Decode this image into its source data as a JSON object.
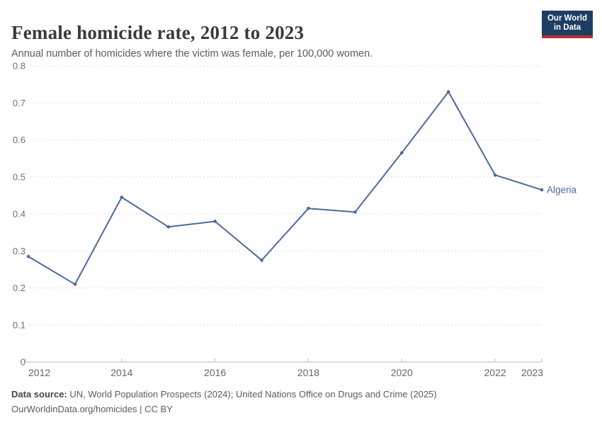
{
  "header": {
    "title": "Female homicide rate, 2012 to 2023",
    "subtitle": "Annual number of homicides where the victim was female, per 100,000 women.",
    "logo": {
      "line1": "Our World",
      "line2": "in Data"
    }
  },
  "colors": {
    "line": "#4c6a9c",
    "gridline": "#dcdcdc",
    "axis": "#bbbbbb",
    "tick_label": "#6e6e6e",
    "logo_bg": "#1d3d63",
    "logo_red": "#be2d2d"
  },
  "chart_data": {
    "type": "line",
    "title": "Female homicide rate, 2012 to 2023",
    "subtitle": "Annual number of homicides where the victim was female, per 100,000 women.",
    "x": [
      2012,
      2013,
      2014,
      2015,
      2016,
      2017,
      2018,
      2019,
      2020,
      2021,
      2022,
      2023
    ],
    "series": [
      {
        "name": "Algeria",
        "color": "#4c6a9c",
        "values": [
          0.285,
          0.21,
          0.445,
          0.365,
          0.38,
          0.275,
          0.415,
          0.405,
          0.565,
          0.73,
          0.505,
          0.465
        ]
      }
    ],
    "ylim": [
      0,
      0.8
    ],
    "yticks": [
      0,
      0.1,
      0.2,
      0.3,
      0.4,
      0.5,
      0.6,
      0.7,
      0.8
    ],
    "ytick_labels": [
      "0",
      "0.1",
      "0.2",
      "0.3",
      "0.4",
      "0.5",
      "0.6",
      "0.7",
      "0.8"
    ],
    "xticks": [
      2012,
      2014,
      2016,
      2018,
      2020,
      2022,
      2023
    ],
    "xtick_labels": [
      "2012",
      "2014",
      "2016",
      "2018",
      "2020",
      "2022",
      "2023"
    ],
    "grid": "horizontal dashed gridlines, on",
    "legend": "entity label at right end of line"
  },
  "footer": {
    "source_label": "Data source:",
    "source_text": "UN, World Population Prospects (2024); United Nations Office on Drugs and Crime (2025)",
    "license_line": "OurWorldinData.org/homicides | CC BY"
  }
}
